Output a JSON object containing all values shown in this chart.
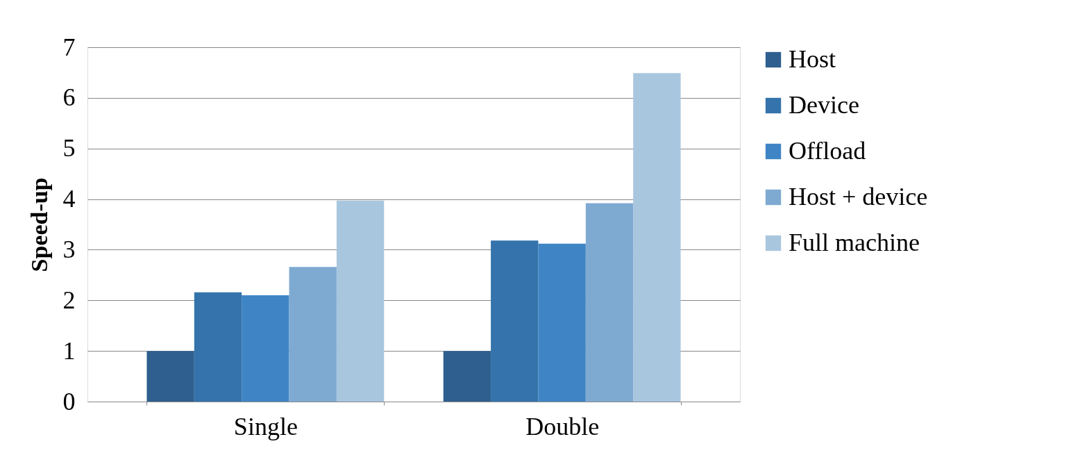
{
  "chart_data": {
    "type": "bar",
    "ylabel": "Speed-up",
    "categories": [
      "Single",
      "Double"
    ],
    "series": [
      {
        "name": "Host",
        "color": "#2e5f8f",
        "values": [
          1.0,
          1.0
        ]
      },
      {
        "name": "Device",
        "color": "#3473ab",
        "values": [
          2.16,
          3.18
        ]
      },
      {
        "name": "Offload",
        "color": "#3f85c5",
        "values": [
          2.1,
          3.12
        ]
      },
      {
        "name": "Host + device",
        "color": "#7eaad2",
        "values": [
          2.66,
          3.92
        ]
      },
      {
        "name": "Full machine",
        "color": "#a9c6df",
        "values": [
          3.97,
          6.49
        ]
      }
    ],
    "ylim": [
      0,
      7
    ],
    "yticks": [
      0,
      1,
      2,
      3,
      4,
      5,
      6,
      7
    ],
    "grid": "y",
    "legend": "right"
  }
}
